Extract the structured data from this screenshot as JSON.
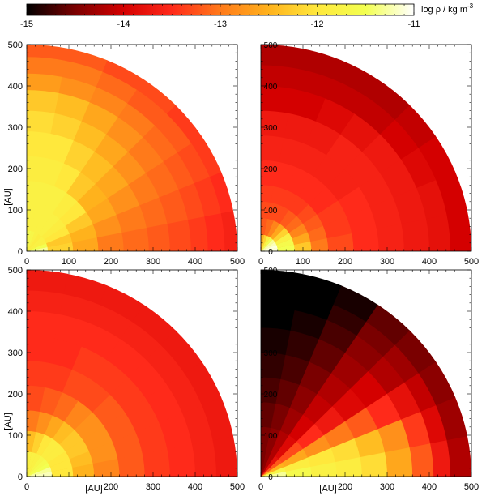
{
  "colorbar": {
    "label": "log ρ / kg m",
    "label_sup": "-3",
    "min": -15,
    "max": -11,
    "tick_values": [
      -15,
      -14,
      -13,
      -12,
      -11
    ],
    "tick_labels": [
      "-15",
      "-14",
      "-13",
      "-12",
      "-11"
    ],
    "colormap": [
      "#000000",
      "#7a0000",
      "#d40000",
      "#ff2a1a",
      "#ff7a1a",
      "#ffb21c",
      "#ffe83c",
      "#f2ff50",
      "#ffffff"
    ]
  },
  "axes": {
    "unit_label": "[AU]",
    "xlim": [
      0,
      500
    ],
    "ylim": [
      0,
      500
    ],
    "ticks": [
      0,
      100,
      200,
      300,
      400,
      500
    ],
    "tick_labels": [
      "0",
      "100",
      "200",
      "300",
      "400",
      "500"
    ]
  },
  "chart_data": [
    {
      "type": "heatmap",
      "panel": "top-left",
      "quantity": "log density",
      "radius_max": 500,
      "shells": [
        {
          "r": 50,
          "values": [
            -11.3,
            -11.5,
            -11.8,
            -11.8,
            -11.9,
            -11.8,
            -11.7,
            -11.6
          ]
        },
        {
          "r": 110,
          "values": [
            -12.2,
            -12.3,
            -12.0,
            -11.9,
            -11.8,
            -11.8,
            -11.8,
            -11.8
          ]
        },
        {
          "r": 170,
          "values": [
            -12.6,
            -12.5,
            -12.3,
            -12.0,
            -11.9,
            -11.8,
            -11.8,
            -11.8
          ]
        },
        {
          "r": 230,
          "values": [
            -13.0,
            -12.8,
            -12.6,
            -12.5,
            -12.3,
            -12.0,
            -11.9,
            -11.9
          ]
        },
        {
          "r": 290,
          "values": [
            -13.1,
            -13.0,
            -12.8,
            -12.6,
            -12.4,
            -12.2,
            -12.0,
            -12.0
          ]
        },
        {
          "r": 340,
          "values": [
            -13.2,
            -13.1,
            -13.0,
            -12.8,
            -12.6,
            -12.4,
            -12.2,
            -12.1
          ]
        },
        {
          "r": 390,
          "values": [
            -13.3,
            -13.2,
            -13.1,
            -13.0,
            -12.8,
            -12.6,
            -12.4,
            -12.3
          ]
        },
        {
          "r": 430,
          "values": [
            -13.4,
            -13.3,
            -13.2,
            -13.1,
            -13.0,
            -12.9,
            -12.8,
            -12.7
          ]
        },
        {
          "r": 470,
          "values": [
            -13.5,
            -13.4,
            -13.3,
            -13.2,
            -13.2,
            -13.1,
            -13.0,
            -13.0
          ]
        },
        {
          "r": 500,
          "values": [
            -13.6,
            -13.5,
            -13.4,
            -13.4,
            -13.3,
            -13.3,
            -13.2,
            -13.2
          ]
        }
      ]
    },
    {
      "type": "heatmap",
      "panel": "top-right",
      "quantity": "log density",
      "radius_max": 500,
      "shells": [
        {
          "r": 40,
          "values": [
            -11.1,
            -11.1,
            -11.2,
            -11.3,
            -11.5,
            -11.8,
            -12.2,
            -12.5
          ]
        },
        {
          "r": 80,
          "values": [
            -11.5,
            -11.6,
            -11.8,
            -12.2,
            -12.6,
            -12.9,
            -13.1,
            -13.2
          ]
        },
        {
          "r": 120,
          "values": [
            -12.3,
            -12.6,
            -12.9,
            -13.1,
            -13.2,
            -13.3,
            -13.3,
            -13.3
          ]
        },
        {
          "r": 160,
          "values": [
            -13.0,
            -13.1,
            -13.2,
            -13.3,
            -13.4,
            -13.4,
            -13.4,
            -13.4
          ]
        },
        {
          "r": 220,
          "values": [
            -13.3,
            -13.4,
            -13.4,
            -13.5,
            -13.5,
            -13.5,
            -13.5,
            -13.5
          ]
        },
        {
          "r": 280,
          "values": [
            -13.5,
            -13.5,
            -13.5,
            -13.6,
            -13.6,
            -13.6,
            -13.6,
            -13.6
          ]
        },
        {
          "r": 340,
          "values": [
            -13.6,
            -13.6,
            -13.6,
            -13.6,
            -13.6,
            -13.7,
            -13.7,
            -13.7
          ]
        },
        {
          "r": 400,
          "values": [
            -13.7,
            -13.7,
            -13.7,
            -13.7,
            -13.8,
            -13.9,
            -14.0,
            -14.0
          ]
        },
        {
          "r": 450,
          "values": [
            -13.8,
            -13.8,
            -13.9,
            -14.0,
            -14.1,
            -14.1,
            -14.1,
            -14.1
          ]
        },
        {
          "r": 500,
          "values": [
            -14.0,
            -14.0,
            -14.0,
            -14.1,
            -14.2,
            -14.2,
            -14.2,
            -14.2
          ]
        }
      ]
    },
    {
      "type": "heatmap",
      "panel": "bottom-left",
      "quantity": "log density",
      "radius_max": 500,
      "shells": [
        {
          "r": 60,
          "values": [
            -11.2,
            -11.3,
            -11.5,
            -11.6,
            -11.7,
            -11.8,
            -11.8,
            -11.8
          ]
        },
        {
          "r": 110,
          "values": [
            -12.0,
            -12.0,
            -12.0,
            -11.9,
            -11.9,
            -12.0,
            -12.2,
            -12.4
          ]
        },
        {
          "r": 160,
          "values": [
            -12.5,
            -12.4,
            -12.3,
            -12.3,
            -12.4,
            -12.6,
            -12.8,
            -13.0
          ]
        },
        {
          "r": 220,
          "values": [
            -12.9,
            -12.8,
            -12.8,
            -12.8,
            -12.9,
            -13.1,
            -13.2,
            -13.3
          ]
        },
        {
          "r": 280,
          "values": [
            -13.2,
            -13.2,
            -13.2,
            -13.2,
            -13.3,
            -13.3,
            -13.4,
            -13.4
          ]
        },
        {
          "r": 340,
          "values": [
            -13.4,
            -13.4,
            -13.4,
            -13.4,
            -13.4,
            -13.4,
            -13.5,
            -13.5
          ]
        },
        {
          "r": 400,
          "values": [
            -13.5,
            -13.5,
            -13.5,
            -13.5,
            -13.5,
            -13.5,
            -13.5,
            -13.5
          ]
        },
        {
          "r": 450,
          "values": [
            -13.6,
            -13.6,
            -13.6,
            -13.6,
            -13.6,
            -13.6,
            -13.6,
            -13.6
          ]
        },
        {
          "r": 500,
          "values": [
            -13.7,
            -13.7,
            -13.7,
            -13.7,
            -13.7,
            -13.7,
            -13.7,
            -13.7
          ]
        }
      ]
    },
    {
      "type": "heatmap",
      "panel": "bottom-right",
      "quantity": "log density",
      "radius_max": 500,
      "shells": [
        {
          "r": 60,
          "values": [
            -11.3,
            -11.7,
            -12.5,
            -13.2,
            -13.8,
            -14.2,
            -14.4,
            -14.5
          ]
        },
        {
          "r": 120,
          "values": [
            -11.6,
            -11.9,
            -12.6,
            -13.3,
            -13.9,
            -14.2,
            -14.4,
            -14.5
          ]
        },
        {
          "r": 180,
          "values": [
            -11.8,
            -12.0,
            -12.8,
            -13.5,
            -14.0,
            -14.3,
            -14.5,
            -14.6
          ]
        },
        {
          "r": 240,
          "values": [
            -11.9,
            -12.1,
            -13.0,
            -13.7,
            -14.1,
            -14.4,
            -14.6,
            -14.7
          ]
        },
        {
          "r": 300,
          "values": [
            -12.1,
            -12.4,
            -13.2,
            -13.9,
            -14.2,
            -14.5,
            -14.7,
            -14.8
          ]
        },
        {
          "r": 360,
          "values": [
            -12.6,
            -12.8,
            -13.5,
            -14.0,
            -14.3,
            -14.6,
            -14.8,
            -14.9
          ]
        },
        {
          "r": 410,
          "values": [
            -13.2,
            -13.4,
            -13.8,
            -14.2,
            -14.4,
            -14.7,
            -14.9,
            -15.0
          ]
        },
        {
          "r": 450,
          "values": [
            -13.7,
            -13.9,
            -14.1,
            -14.3,
            -14.5,
            -14.8,
            -15.0,
            -15.0
          ]
        },
        {
          "r": 500,
          "values": [
            -14.2,
            -14.3,
            -14.4,
            -14.5,
            -14.6,
            -14.9,
            -15.0,
            -15.0
          ]
        }
      ]
    }
  ]
}
